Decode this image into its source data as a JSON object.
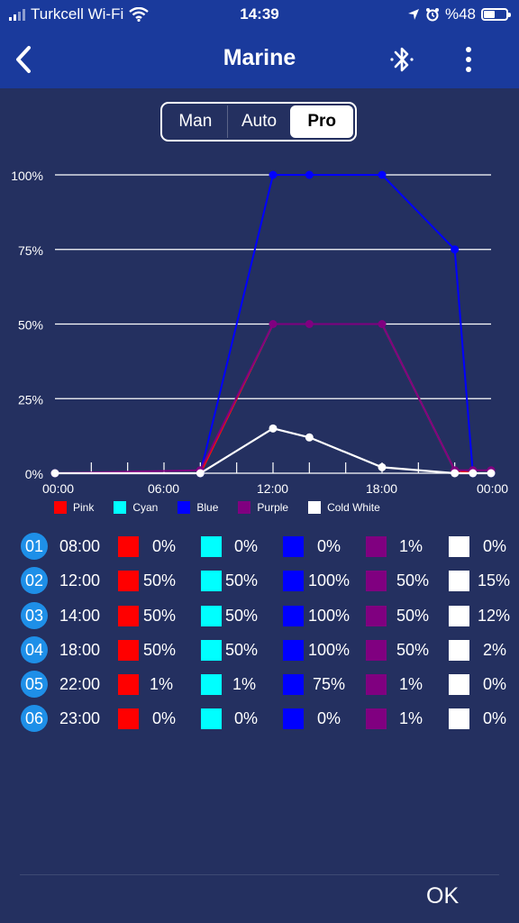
{
  "status": {
    "carrier": "Turkcell Wi-Fi",
    "time": "14:39",
    "battery": "%48"
  },
  "nav": {
    "title": "Marine",
    "back_icon": "back-chevron-icon",
    "bluetooth_icon": "bluetooth-icon",
    "more_icon": "more-vertical-icon"
  },
  "modes": {
    "items": [
      "Man",
      "Auto",
      "Pro"
    ],
    "selected": "Pro"
  },
  "colors": {
    "Pink": "#ff0000",
    "Cyan": "#00ffff",
    "Blue": "#0000ff",
    "Purple": "#800080",
    "Cold White": "#ffffff"
  },
  "legend": [
    "Pink",
    "Cyan",
    "Blue",
    "Purple",
    "Cold White"
  ],
  "chart_data": {
    "type": "line",
    "x_axis": {
      "ticks": [
        "00:00",
        "06:00",
        "12:00",
        "18:00",
        "00:00"
      ],
      "min_hour": 0,
      "max_hour": 24
    },
    "y_axis": {
      "ticks": [
        "0%",
        "25%",
        "50%",
        "75%",
        "100%"
      ],
      "min": 0,
      "max": 100
    },
    "hours": [
      0,
      8,
      12,
      14,
      18,
      22,
      23,
      24
    ],
    "series": [
      {
        "name": "Pink",
        "values": [
          0,
          0,
          50,
          50,
          50,
          1,
          0,
          0
        ]
      },
      {
        "name": "Cyan",
        "values": [
          0,
          0,
          50,
          50,
          50,
          1,
          0,
          0
        ]
      },
      {
        "name": "Blue",
        "values": [
          0,
          0,
          100,
          100,
          100,
          75,
          0,
          0
        ]
      },
      {
        "name": "Purple",
        "values": [
          0,
          1,
          50,
          50,
          50,
          1,
          1,
          1
        ]
      },
      {
        "name": "Cold White",
        "values": [
          0,
          0,
          15,
          12,
          2,
          0,
          0,
          0
        ]
      }
    ]
  },
  "schedule": [
    {
      "index": "01",
      "time": "08:00",
      "values": [
        "0%",
        "0%",
        "0%",
        "1%",
        "0%"
      ]
    },
    {
      "index": "02",
      "time": "12:00",
      "values": [
        "50%",
        "50%",
        "100%",
        "50%",
        "15%"
      ]
    },
    {
      "index": "03",
      "time": "14:00",
      "values": [
        "50%",
        "50%",
        "100%",
        "50%",
        "12%"
      ]
    },
    {
      "index": "04",
      "time": "18:00",
      "values": [
        "50%",
        "50%",
        "100%",
        "50%",
        "2%"
      ]
    },
    {
      "index": "05",
      "time": "22:00",
      "values": [
        "1%",
        "1%",
        "75%",
        "1%",
        "0%"
      ]
    },
    {
      "index": "06",
      "time": "23:00",
      "values": [
        "0%",
        "0%",
        "0%",
        "1%",
        "0%"
      ]
    }
  ],
  "ok_label": "OK"
}
